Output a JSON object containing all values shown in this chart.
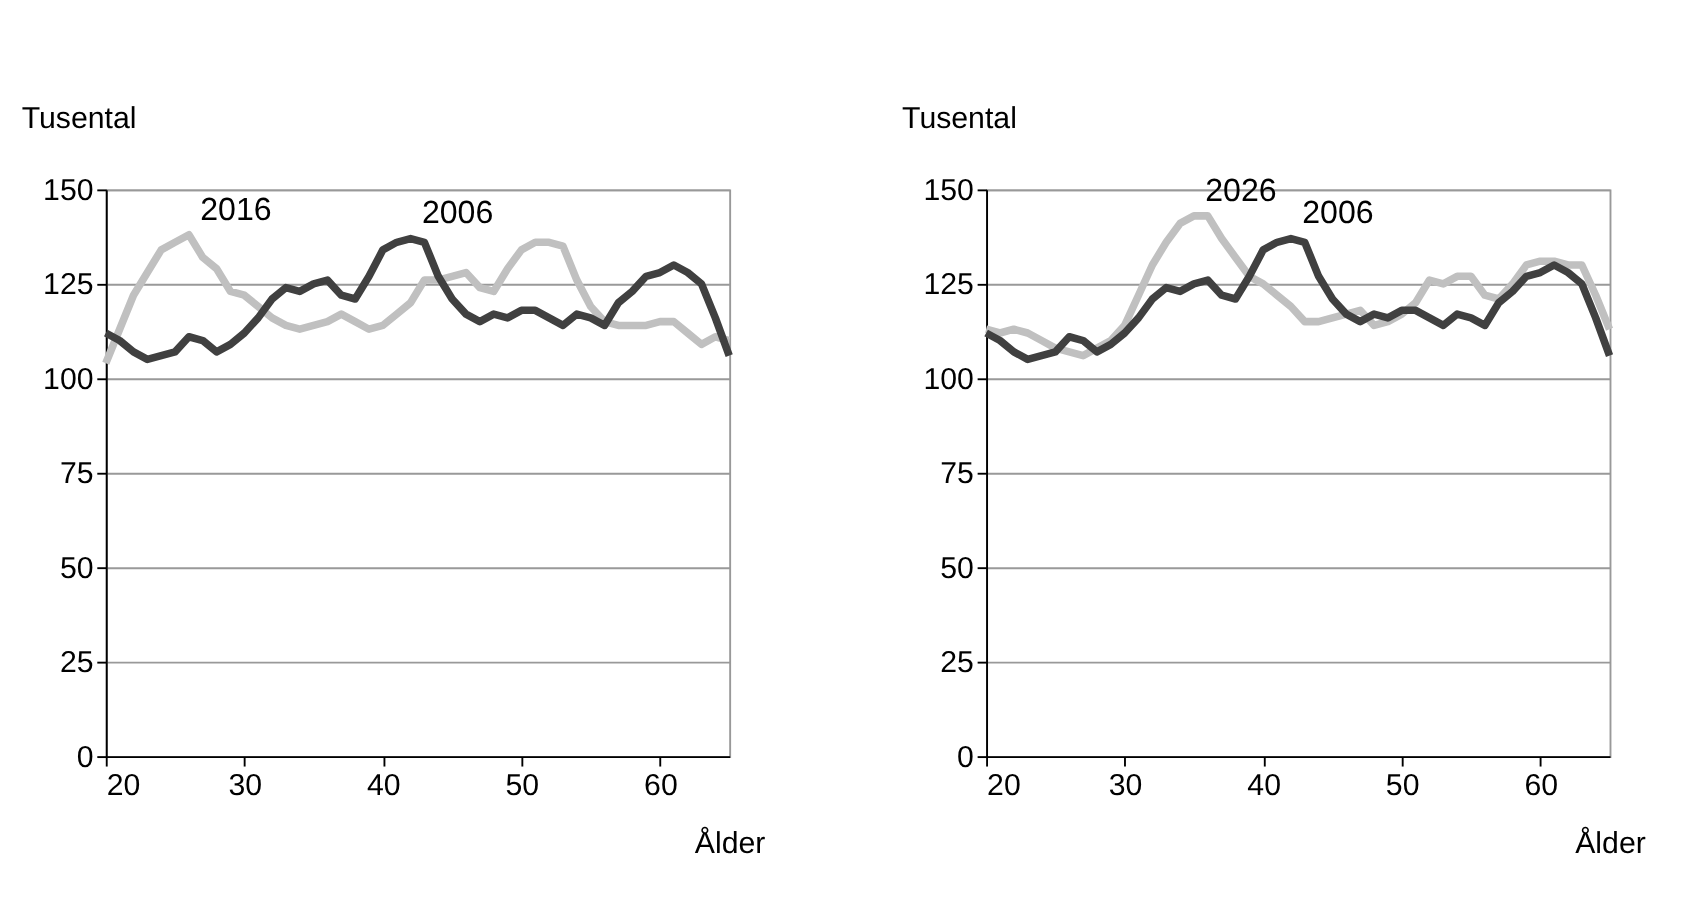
{
  "chart_data": [
    {
      "type": "line",
      "xlabel": "Ålder",
      "ylabel": "Tusental",
      "xlim": [
        20,
        65
      ],
      "xticks": [
        20,
        30,
        40,
        50,
        60
      ],
      "ylim": [
        0,
        150
      ],
      "yticks": [
        0,
        25,
        50,
        75,
        100,
        125,
        150
      ],
      "grid": "y",
      "legend": false,
      "marker": "none",
      "line_style": "solid",
      "x": [
        20,
        21,
        22,
        23,
        24,
        25,
        26,
        27,
        28,
        29,
        30,
        31,
        32,
        33,
        34,
        35,
        36,
        37,
        38,
        39,
        40,
        41,
        42,
        43,
        44,
        45,
        46,
        47,
        48,
        49,
        50,
        51,
        52,
        53,
        54,
        55,
        56,
        57,
        58,
        59,
        60,
        61,
        62,
        63,
        64,
        65
      ],
      "series": [
        {
          "name": "2016",
          "color": "#c0c0c0",
          "values": [
            104,
            113,
            122,
            128,
            134,
            136,
            138,
            132,
            129,
            123,
            122,
            119,
            116,
            114,
            113,
            114,
            115,
            117,
            115,
            113,
            114,
            117,
            120,
            126,
            126,
            127,
            128,
            124,
            123,
            129,
            134,
            136,
            136,
            135,
            126,
            119,
            115,
            114,
            114,
            114,
            115,
            115,
            112,
            109,
            111,
            110
          ]
        },
        {
          "name": "2006",
          "color": "#404040",
          "values": [
            112,
            110,
            107,
            105,
            106,
            107,
            111,
            110,
            107,
            109,
            112,
            116,
            121,
            124,
            123,
            125,
            126,
            122,
            121,
            127,
            134,
            136,
            137,
            136,
            127,
            121,
            117,
            115,
            117,
            116,
            118,
            118,
            116,
            114,
            117,
            116,
            114,
            120,
            123,
            127,
            128,
            130,
            128,
            125,
            116,
            106
          ]
        }
      ]
    },
    {
      "type": "line",
      "xlabel": "Ålder",
      "ylabel": "Tusental",
      "xlim": [
        20,
        65
      ],
      "xticks": [
        20,
        30,
        40,
        50,
        60
      ],
      "ylim": [
        0,
        150
      ],
      "yticks": [
        0,
        25,
        50,
        75,
        100,
        125,
        150
      ],
      "grid": "y",
      "legend": false,
      "marker": "none",
      "line_style": "solid",
      "x": [
        20,
        21,
        22,
        23,
        24,
        25,
        26,
        27,
        28,
        29,
        30,
        31,
        32,
        33,
        34,
        35,
        36,
        37,
        38,
        39,
        40,
        41,
        42,
        43,
        44,
        45,
        46,
        47,
        48,
        49,
        50,
        51,
        52,
        53,
        54,
        55,
        56,
        57,
        58,
        59,
        60,
        61,
        62,
        63,
        64,
        65
      ],
      "series": [
        {
          "name": "2026",
          "color": "#c0c0c0",
          "values": [
            113,
            112,
            113,
            112,
            110,
            108,
            107,
            106,
            108,
            110,
            114,
            122,
            130,
            136,
            141,
            143,
            143,
            137,
            132,
            127,
            125,
            122,
            119,
            115,
            115,
            116,
            117,
            118,
            114,
            115,
            117,
            120,
            126,
            125,
            127,
            127,
            122,
            121,
            125,
            130,
            131,
            131,
            130,
            130,
            122,
            113
          ]
        },
        {
          "name": "2006",
          "color": "#404040",
          "values": [
            112,
            110,
            107,
            105,
            106,
            107,
            111,
            110,
            107,
            109,
            112,
            116,
            121,
            124,
            123,
            125,
            126,
            122,
            121,
            127,
            134,
            136,
            137,
            136,
            127,
            121,
            117,
            115,
            117,
            116,
            118,
            118,
            116,
            114,
            117,
            116,
            114,
            120,
            123,
            127,
            128,
            130,
            128,
            125,
            116,
            106
          ]
        }
      ]
    }
  ]
}
